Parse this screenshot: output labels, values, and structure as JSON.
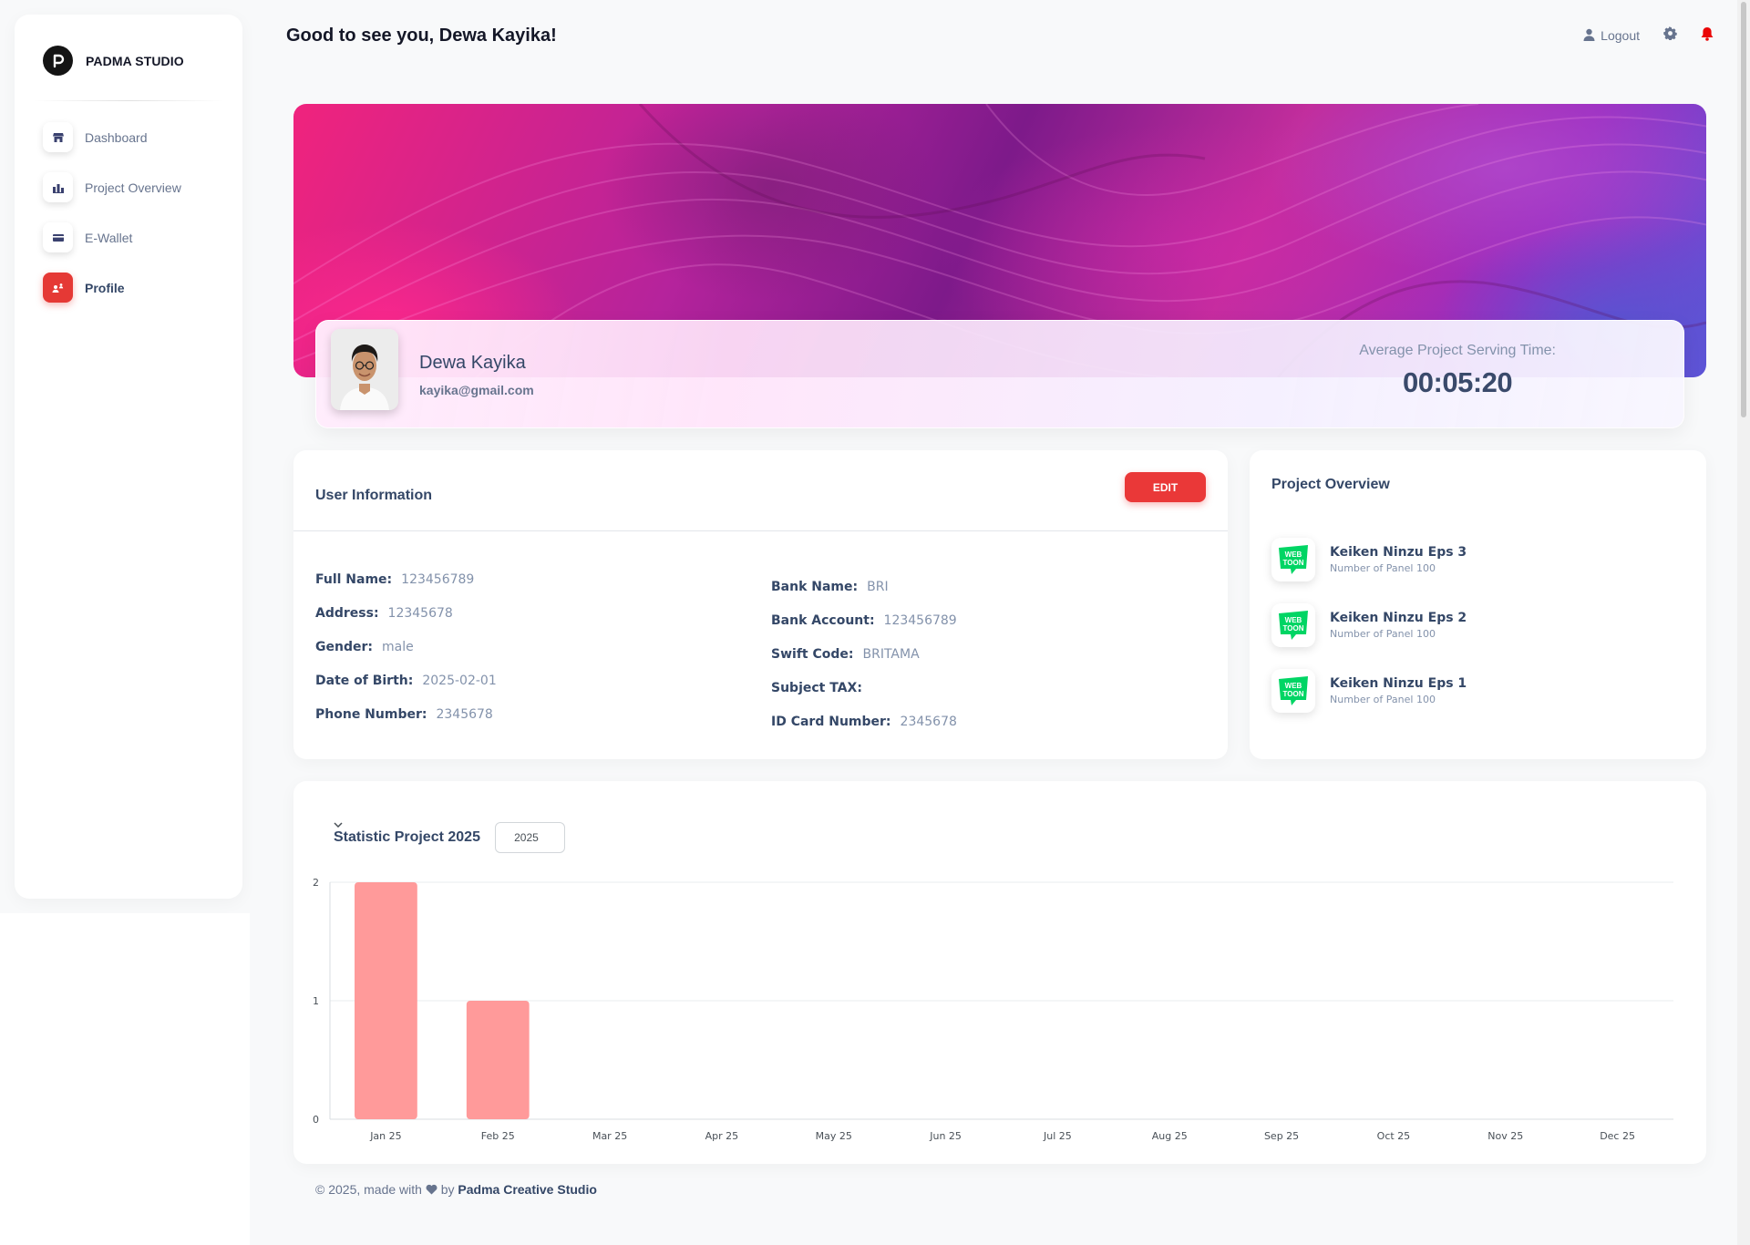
{
  "brand": {
    "name": "PADMA STUDIO"
  },
  "sidebar": {
    "items": [
      {
        "label": "Dashboard",
        "icon": "store-icon",
        "active": false
      },
      {
        "label": "Project Overview",
        "icon": "chart-icon",
        "active": false
      },
      {
        "label": "E-Wallet",
        "icon": "credit-card-icon",
        "active": false
      },
      {
        "label": "Profile",
        "icon": "user-icon",
        "active": true
      }
    ]
  },
  "header": {
    "greeting": "Good to see you, Dewa Kayika!",
    "logout_label": "Logout"
  },
  "profile": {
    "name": "Dewa Kayika",
    "email": "kayika@gmail.com",
    "avg_label": "Average Project Serving Time:",
    "avg_value": "00:05:20"
  },
  "user_info": {
    "title": "User Information",
    "edit_label": "EDIT",
    "left": [
      {
        "key": "Full Name:",
        "value": "123456789"
      },
      {
        "key": "Address:",
        "value": "12345678"
      },
      {
        "key": "Gender:",
        "value": "male"
      },
      {
        "key": "Date of Birth:",
        "value": "2025-02-01"
      },
      {
        "key": "Phone Number:",
        "value": "2345678"
      }
    ],
    "right": [
      {
        "key": "Bank Name:",
        "value": "BRI"
      },
      {
        "key": "Bank Account:",
        "value": "123456789"
      },
      {
        "key": "Swift Code:",
        "value": "BRITAMA"
      },
      {
        "key": "Subject TAX:",
        "value": ""
      },
      {
        "key": "ID Card Number:",
        "value": "2345678"
      }
    ]
  },
  "project_overview": {
    "title": "Project Overview",
    "items": [
      {
        "title": "Keiken Ninzu Eps 3",
        "subtitle": "Number of Panel 100",
        "icon_text": [
          "WEB",
          "TOON"
        ]
      },
      {
        "title": "Keiken Ninzu Eps 2",
        "subtitle": "Number of Panel 100",
        "icon_text": [
          "WEB",
          "TOON"
        ]
      },
      {
        "title": "Keiken Ninzu Eps 1",
        "subtitle": "Number of Panel 100",
        "icon_text": [
          "WEB",
          "TOON"
        ]
      }
    ]
  },
  "statistic": {
    "title": "Statistic Project 2025",
    "year": "2025"
  },
  "chart_data": {
    "type": "bar",
    "categories": [
      "Jan 25",
      "Feb 25",
      "Mar 25",
      "Apr 25",
      "May 25",
      "Jun 25",
      "Jul 25",
      "Aug 25",
      "Sep 25",
      "Oct 25",
      "Nov 25",
      "Dec 25"
    ],
    "values": [
      2,
      1,
      0,
      0,
      0,
      0,
      0,
      0,
      0,
      0,
      0,
      0
    ],
    "yticks": [
      "0",
      "1",
      "2"
    ],
    "ylim": [
      0,
      2
    ],
    "bar_color": "#ff9a9a",
    "grid": true
  },
  "footer": {
    "prefix": "© 2025, made with",
    "by": "by",
    "studio": "Padma Creative Studio"
  },
  "colors": {
    "accent": "#ea3838",
    "text_dark": "#344767",
    "text_muted": "#8392ab",
    "webtoon_green": "#00d564"
  }
}
